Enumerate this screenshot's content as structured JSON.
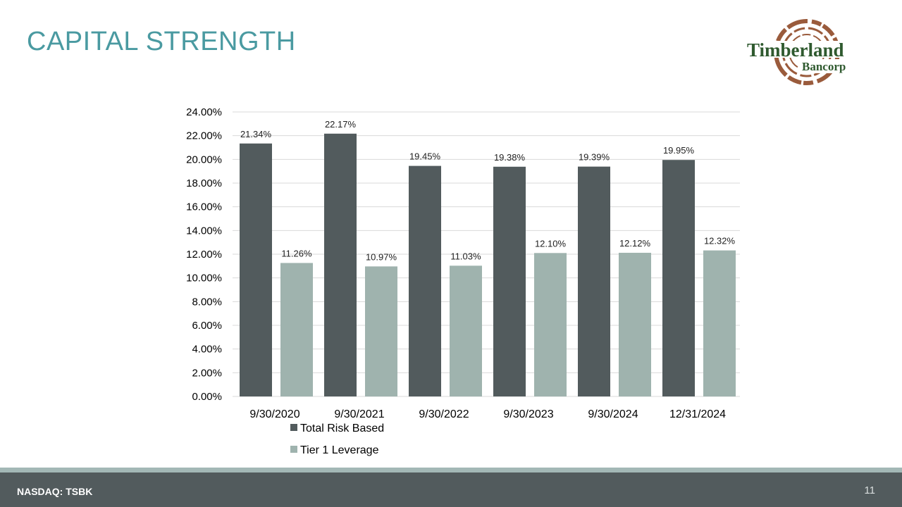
{
  "slide": {
    "title": "CAPITAL STRENGTH",
    "footer_left": "NASDAQ: TSBK",
    "page_number": "11"
  },
  "logo": {
    "name": "Timberland",
    "sub": "Bancorp",
    "text_color": "#2f5a2f",
    "ring_color": "#9a5b3c"
  },
  "colors": {
    "title": "#4a9aa1",
    "footer_bg": "#525b5d",
    "footer_stripe": "#a3b8b6",
    "series_dark": "#525b5d",
    "series_light": "#9fb3ae",
    "grid": "#d9d9d9"
  },
  "chart_data": {
    "type": "bar",
    "categories": [
      "9/30/2020",
      "9/30/2021",
      "9/30/2022",
      "9/30/2023",
      "9/30/2024",
      "12/31/2024"
    ],
    "series": [
      {
        "name": "Total Risk Based",
        "values": [
          21.34,
          22.17,
          19.45,
          19.38,
          19.39,
          19.95
        ],
        "labels": [
          "21.34%",
          "22.17%",
          "19.45%",
          "19.38%",
          "19.39%",
          "19.95%"
        ],
        "color": "#525b5d"
      },
      {
        "name": "Tier 1 Leverage",
        "values": [
          11.26,
          10.97,
          11.03,
          12.1,
          12.12,
          12.32
        ],
        "labels": [
          "11.26%",
          "10.97%",
          "11.03%",
          "12.10%",
          "12.12%",
          "12.32%"
        ],
        "color": "#9fb3ae"
      }
    ],
    "ylim": [
      0,
      24
    ],
    "yticks": [
      "0.00%",
      "2.00%",
      "4.00%",
      "6.00%",
      "8.00%",
      "10.00%",
      "12.00%",
      "14.00%",
      "16.00%",
      "18.00%",
      "20.00%",
      "22.00%",
      "24.00%"
    ],
    "ytick_values": [
      0,
      2,
      4,
      6,
      8,
      10,
      12,
      14,
      16,
      18,
      20,
      22,
      24
    ],
    "grid": true,
    "legend_position": "bottom-left",
    "title": "",
    "xlabel": "",
    "ylabel": ""
  }
}
